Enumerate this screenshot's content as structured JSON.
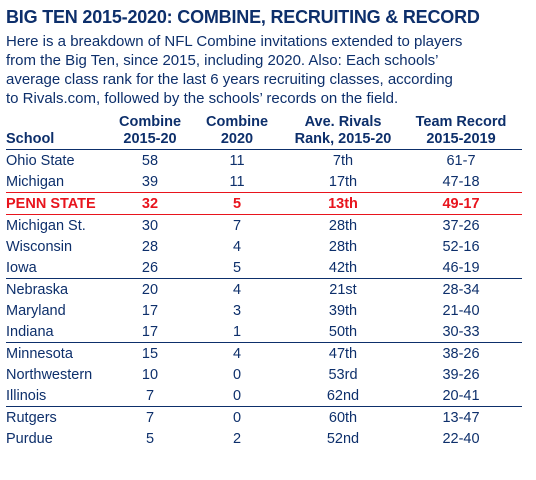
{
  "title": "BIG TEN 2015-2020: COMBINE, RECRUITING & RECORD",
  "intro_lines": [
    "Here is a breakdown of NFL Combine invitations extended to players",
    "from the Big Ten, since 2015, including 2020. Also: Each schools’",
    "average class rank for the last 6 years recruiting classes, according",
    "to Rivals.com, followed by the schools’ records on the field."
  ],
  "colors": {
    "text": "#0d2f6b",
    "highlight": "#e8141d"
  },
  "table": {
    "headers": {
      "school": "School",
      "combine_1520": [
        "Combine",
        "2015-20"
      ],
      "combine_2020": [
        "Combine",
        "2020"
      ],
      "rivals": [
        "Ave. Rivals",
        "Rank, 2015-20"
      ],
      "record": [
        "Team Record",
        "2015-2019"
      ]
    },
    "rows": [
      {
        "school": "Ohio State",
        "combine_1520": "58",
        "combine_2020": "11",
        "rivals": "7th",
        "record": "61-7"
      },
      {
        "school": "Michigan",
        "combine_1520": "39",
        "combine_2020": "11",
        "rivals": "17th",
        "record": "47-18"
      },
      {
        "school": "PENN STATE",
        "combine_1520": "32",
        "combine_2020": "5",
        "rivals": "13th",
        "record": "49-17"
      },
      {
        "school": "Michigan St.",
        "combine_1520": "30",
        "combine_2020": "7",
        "rivals": "28th",
        "record": "37-26"
      },
      {
        "school": "Wisconsin",
        "combine_1520": "28",
        "combine_2020": "4",
        "rivals": "28th",
        "record": "52-16"
      },
      {
        "school": "Iowa",
        "combine_1520": "26",
        "combine_2020": "5",
        "rivals": "42th",
        "record": "46-19"
      },
      {
        "school": "Nebraska",
        "combine_1520": "20",
        "combine_2020": "4",
        "rivals": "21st",
        "record": "28-34"
      },
      {
        "school": "Maryland",
        "combine_1520": "17",
        "combine_2020": "3",
        "rivals": "39th",
        "record": "21-40"
      },
      {
        "school": "Indiana",
        "combine_1520": "17",
        "combine_2020": "1",
        "rivals": "50th",
        "record": "30-33"
      },
      {
        "school": "Minnesota",
        "combine_1520": "15",
        "combine_2020": "4",
        "rivals": "47th",
        "record": "38-26"
      },
      {
        "school": "Northwestern",
        "combine_1520": "10",
        "combine_2020": "0",
        "rivals": "53rd",
        "record": "39-26"
      },
      {
        "school": "Illinois",
        "combine_1520": "7",
        "combine_2020": "0",
        "rivals": "62nd",
        "record": "20-41"
      },
      {
        "school": "Rutgers",
        "combine_1520": "7",
        "combine_2020": "0",
        "rivals": "60th",
        "record": "13-47"
      },
      {
        "school": "Purdue",
        "combine_1520": "5",
        "combine_2020": "2",
        "rivals": "52nd",
        "record": "22-40"
      }
    ]
  }
}
